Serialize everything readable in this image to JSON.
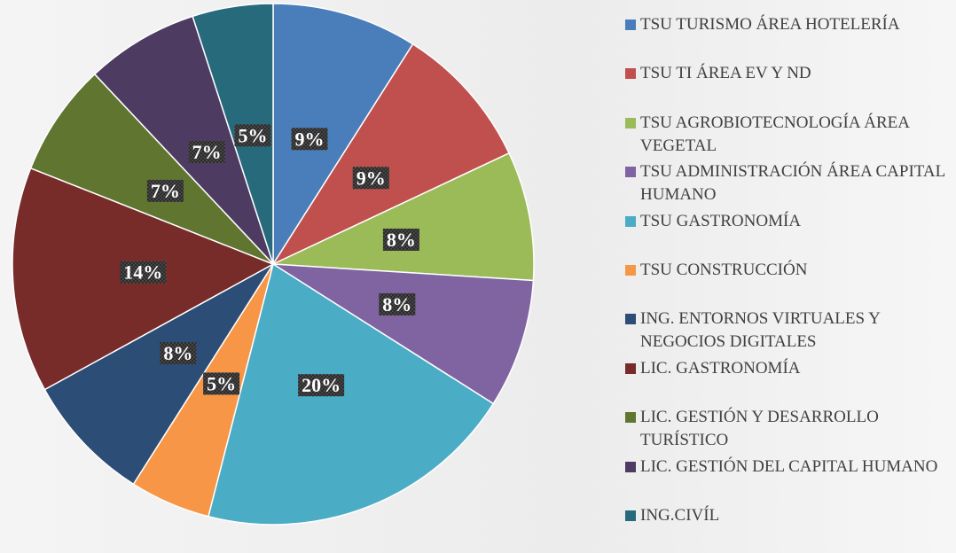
{
  "chart_data": {
    "type": "pie",
    "categories": [
      "TSU TURISMO ÁREA HOTELERÍA",
      "TSU TI ÁREA EV Y ND",
      "TSU AGROBIOTECNOLOGÍA ÁREA VEGETAL",
      "TSU ADMINISTRACIÓN ÁREA CAPITAL HUMANO",
      "TSU GASTRONOMÍA",
      "TSU CONSTRUCCIÓN",
      "ING. ENTORNOS VIRTUALES Y NEGOCIOS DIGITALES",
      "LIC. GASTRONOMÍA",
      "LIC. GESTIÓN Y DESARROLLO TURÍSTICO",
      "LIC. GESTIÓN DEL CAPITAL HUMANO",
      "ING.CIVÍL"
    ],
    "values": [
      9,
      9,
      8,
      8,
      20,
      5,
      8,
      14,
      7,
      7,
      5
    ],
    "value_labels": [
      "9%",
      "9%",
      "8%",
      "8%",
      "20%",
      "5%",
      "8%",
      "14%",
      "7%",
      "7%",
      "5%"
    ],
    "colors": [
      "#4a7ebb",
      "#c0504d",
      "#9bbb59",
      "#8064a2",
      "#4bacc6",
      "#f79646",
      "#2c4d75",
      "#772c2a",
      "#5f7530",
      "#4d3b62",
      "#276a7c"
    ],
    "legend": "right"
  }
}
